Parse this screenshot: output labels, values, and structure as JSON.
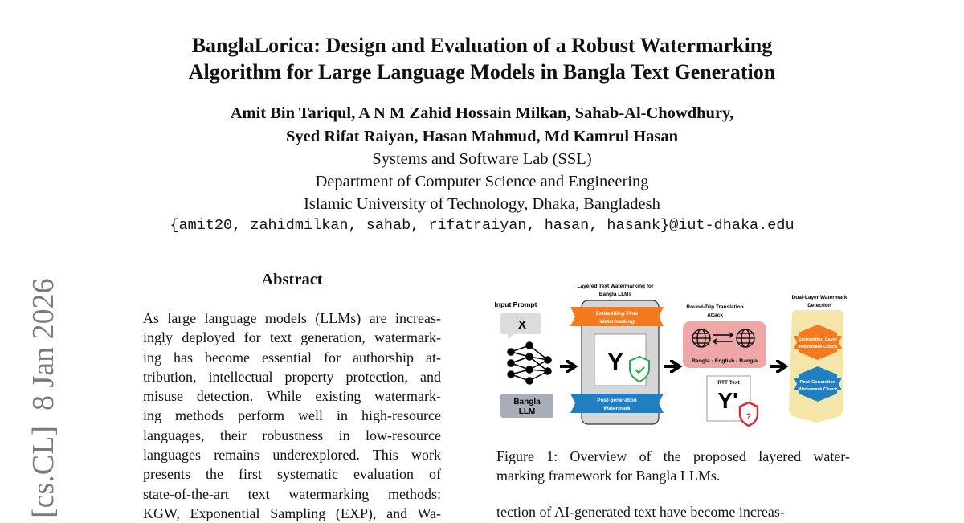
{
  "title": {
    "line1": "BanglaLorica: Design and Evaluation of a Robust Watermarking",
    "line2": "Algorithm for Large Language Models in Bangla Text Generation"
  },
  "authors": {
    "line1": "Amit Bin Tariqul, A N M Zahid Hossain Milkan, Sahab-Al-Chowdhury,",
    "line2": "Syed Rifat Raiyan, Hasan Mahmud, Md Kamrul Hasan"
  },
  "affiliation": [
    "Systems and Software Lab (SSL)",
    "Department of Computer Science and Engineering",
    "Islamic University of Technology, Dhaka, Bangladesh"
  ],
  "email": "{amit20, zahidmilkan, sahab, rifatraiyan, hasan, hasank}@iut-dhaka.edu",
  "side_stamp": "[cs.CL]  8 Jan 2026",
  "abstract": {
    "heading": "Abstract",
    "lines": [
      "As large language models (LLMs) are increas-",
      "ingly deployed for text generation, watermark-",
      "ing has become essential for authorship at-",
      "tribution, intellectual property protection, and",
      "misuse detection.  While existing watermark-",
      "ing methods perform well in high-resource",
      "languages, their robustness in low-resource",
      "languages remains underexplored. This work",
      "presents the first systematic evaluation of",
      "state-of-the-art text watermarking methods:",
      "KGW, Exponential Sampling (EXP), and Wa-"
    ]
  },
  "figure": {
    "input_prompt": "Input Prompt",
    "x": "X",
    "llm_line1": "Bangla",
    "llm_line2": "LLM",
    "layered_title1": "Layered Text Watermarking for",
    "layered_title2": "Bangla LLMs",
    "embed_wm1": "Embedding-Time",
    "embed_wm2": "Watermarking",
    "y": "Y",
    "post_wm1": "Post-generation",
    "post_wm2": "Watermark",
    "rtt_title1": "Round-Trip Translation",
    "rtt_title2": "Attack",
    "rtt_langs": "Bangla - English - Bangla",
    "rtt_text": "RTT Text",
    "y_prime": "Y'",
    "question": "?",
    "det_title1": "Dual-Layer Watermark",
    "det_title2": "Detection",
    "check1a": "Embedding Layer",
    "check1b": "Watermark Check",
    "check2a": "Post-Generation",
    "check2b": "Watermark Check",
    "colors": {
      "orange": "#f47a20",
      "blue": "#1f7fc1",
      "pink": "#eea7a7",
      "yellow": "#f3e6a8",
      "gray": "#d6d6d6",
      "llm": "#a9adb8",
      "green": "#2aa84a",
      "red": "#e8242b"
    }
  },
  "caption": {
    "line1": "Figure 1:  Overview of the proposed layered water-",
    "line2": "marking framework for Bangla LLMs."
  },
  "body_text": "tection of AI-generated text have become increas-"
}
